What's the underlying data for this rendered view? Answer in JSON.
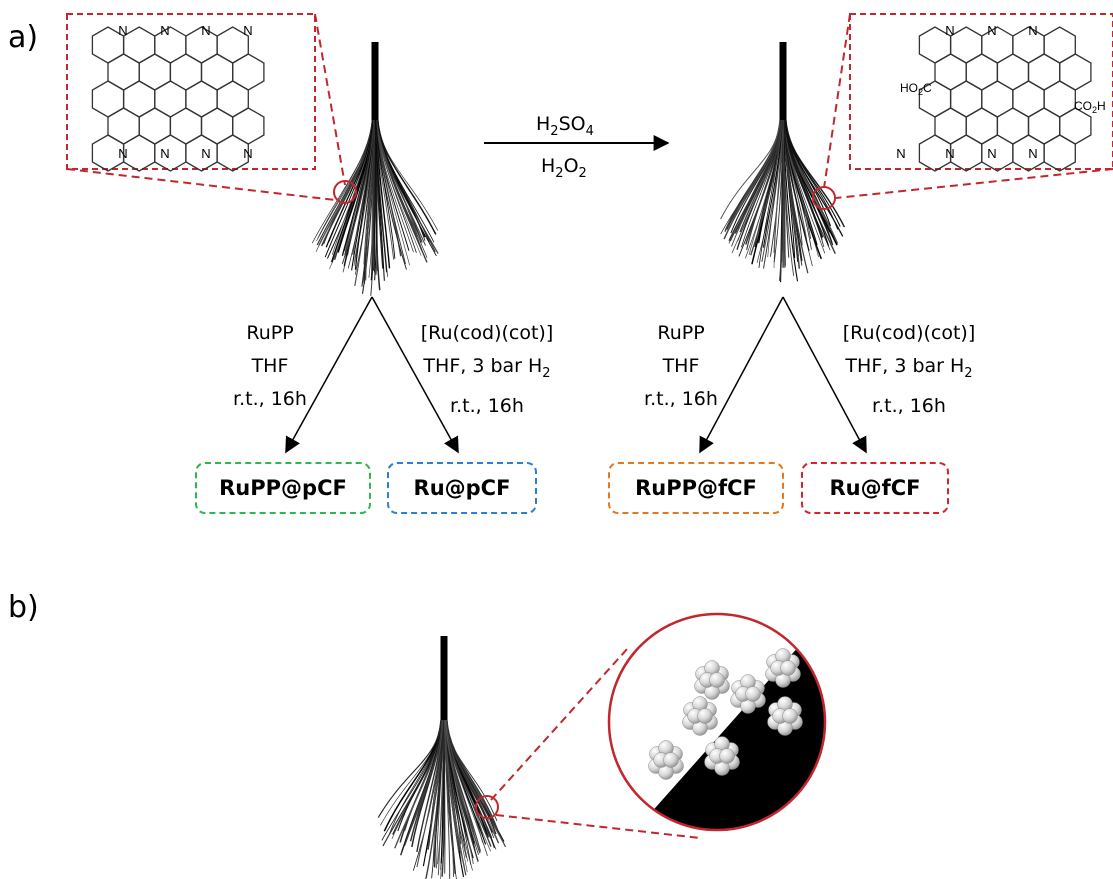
{
  "panels": {
    "a": "a)",
    "b": "b)"
  },
  "top_reaction": {
    "reagent1": "H2SO4",
    "reagent2": "H2O2"
  },
  "molecule": {
    "atom_n": "N",
    "acid_left": "HO2C",
    "acid_right": "CO2H"
  },
  "conditions": {
    "left_a": [
      "RuPP",
      "THF",
      "r.t., 16h"
    ],
    "left_b": [
      "[Ru(cod)(cot)]",
      "THF, 3 bar H2",
      "r.t., 16h"
    ],
    "right_a": [
      "RuPP",
      "THF",
      "r.t., 16h"
    ],
    "right_b": [
      "[Ru(cod)(cot)]",
      "THF, 3 bar H2",
      "r.t., 16h"
    ]
  },
  "products": {
    "p1": {
      "label": "RuPP@pCF",
      "color": "#2db84d"
    },
    "p2": {
      "label": "Ru@pCF",
      "color": "#2f7fd0"
    },
    "p3": {
      "label": "RuPP@fCF",
      "color": "#e07a20"
    },
    "p4": {
      "label": "Ru@fCF",
      "color": "#d8232a"
    }
  },
  "colors": {
    "callout": "#c1272d",
    "fiber": "#000000",
    "particle": "#d8d8d8"
  }
}
